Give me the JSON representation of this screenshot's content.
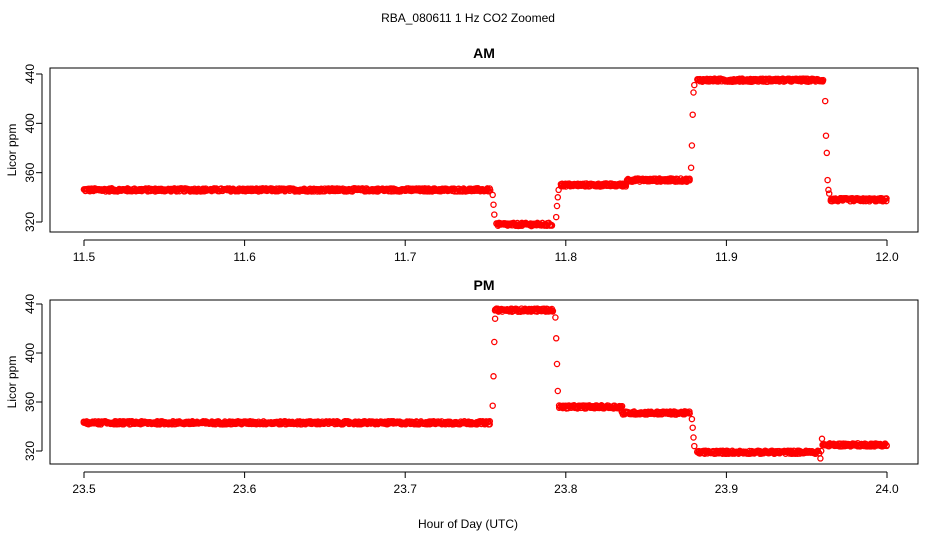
{
  "title": "RBA_080611  1 Hz CO2 Zoomed",
  "xlabel": "Hour of Day (UTC)",
  "colors": {
    "points": "#ff0000",
    "axes": "#000000",
    "background": "#ffffff"
  },
  "chart_data": [
    {
      "type": "scatter",
      "title": "AM",
      "ylabel": "Licor ppm",
      "xlim": [
        11.5,
        12.0
      ],
      "ylim": [
        312,
        446
      ],
      "xticks": [
        11.5,
        11.6,
        11.7,
        11.8,
        11.9,
        12.0
      ],
      "xtick_labels": [
        "11.5",
        "11.6",
        "11.7",
        "11.8",
        "11.9",
        "12.0"
      ],
      "yticks": [
        320,
        360,
        400,
        440
      ],
      "ytick_labels": [
        "320",
        "360",
        "400",
        "440"
      ],
      "grid": false,
      "marker": "open-circle",
      "segments": [
        {
          "x0": 11.5,
          "x1": 11.753,
          "y": 346
        },
        {
          "x0": 11.757,
          "x1": 11.792,
          "y": 318
        },
        {
          "x0": 11.797,
          "x1": 11.838,
          "y": 350
        },
        {
          "x0": 11.838,
          "x1": 11.877,
          "y": 354
        },
        {
          "x0": 11.882,
          "x1": 11.96,
          "y": 435
        },
        {
          "x0": 11.965,
          "x1": 12.0,
          "y": 338
        }
      ],
      "transitions": [
        {
          "x": 11.7545,
          "y": 342
        },
        {
          "x": 11.755,
          "y": 334
        },
        {
          "x": 11.7555,
          "y": 326
        },
        {
          "x": 11.794,
          "y": 324
        },
        {
          "x": 11.7945,
          "y": 333
        },
        {
          "x": 11.795,
          "y": 340
        },
        {
          "x": 11.7955,
          "y": 346
        },
        {
          "x": 11.878,
          "y": 364
        },
        {
          "x": 11.8785,
          "y": 382
        },
        {
          "x": 11.879,
          "y": 407
        },
        {
          "x": 11.8795,
          "y": 425
        },
        {
          "x": 11.88,
          "y": 431
        },
        {
          "x": 11.9615,
          "y": 418
        },
        {
          "x": 11.962,
          "y": 390
        },
        {
          "x": 11.9625,
          "y": 376
        },
        {
          "x": 11.963,
          "y": 354
        },
        {
          "x": 11.9635,
          "y": 346
        },
        {
          "x": 11.964,
          "y": 343
        }
      ]
    },
    {
      "type": "scatter",
      "title": "PM",
      "ylabel": "Licor ppm",
      "xlim": [
        23.5,
        24.0
      ],
      "ylim": [
        310,
        446
      ],
      "xticks": [
        23.5,
        23.6,
        23.7,
        23.8,
        23.9,
        24.0
      ],
      "xtick_labels": [
        "23.5",
        "23.6",
        "23.7",
        "23.8",
        "23.9",
        "24.0"
      ],
      "yticks": [
        320,
        360,
        400,
        440
      ],
      "ytick_labels": [
        "320",
        "360",
        "400",
        "440"
      ],
      "grid": false,
      "marker": "open-circle",
      "segments": [
        {
          "x0": 23.5,
          "x1": 23.753,
          "y": 343
        },
        {
          "x0": 23.756,
          "x1": 23.792,
          "y": 435
        },
        {
          "x0": 23.796,
          "x1": 23.835,
          "y": 356
        },
        {
          "x0": 23.835,
          "x1": 23.877,
          "y": 351
        },
        {
          "x0": 23.882,
          "x1": 23.958,
          "y": 319
        },
        {
          "x0": 23.96,
          "x1": 24.0,
          "y": 325
        }
      ],
      "transitions": [
        {
          "x": 23.7545,
          "y": 357
        },
        {
          "x": 23.755,
          "y": 381
        },
        {
          "x": 23.7555,
          "y": 409
        },
        {
          "x": 23.756,
          "y": 428
        },
        {
          "x": 23.7935,
          "y": 429
        },
        {
          "x": 23.794,
          "y": 412
        },
        {
          "x": 23.7945,
          "y": 391
        },
        {
          "x": 23.795,
          "y": 369
        },
        {
          "x": 23.8785,
          "y": 346
        },
        {
          "x": 23.879,
          "y": 339
        },
        {
          "x": 23.8795,
          "y": 331
        },
        {
          "x": 23.88,
          "y": 324
        },
        {
          "x": 23.9585,
          "y": 314
        },
        {
          "x": 23.959,
          "y": 320
        },
        {
          "x": 23.9595,
          "y": 330
        }
      ]
    }
  ]
}
